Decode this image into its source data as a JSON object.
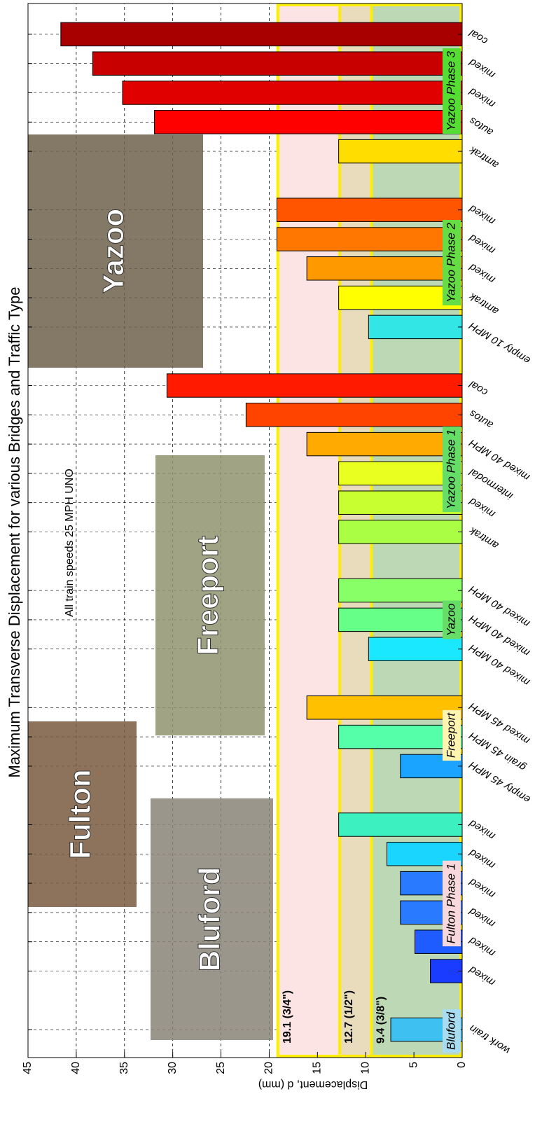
{
  "chart_data": {
    "type": "bar",
    "title": "Maximum Transverse Displacement for various Bridges and Traffic Type",
    "y_label": "Displacement, d (mm)",
    "annotation": "All train speeds 25 MPH UNO",
    "categories": [
      "work train",
      null,
      "mixed",
      "mixed",
      "mixed",
      "mixed",
      "mixed",
      "mixed",
      null,
      "empty 45 MPH",
      "grain 45 MPH",
      "mixed 45 MPH",
      null,
      "mixed 40 MPH",
      "mixed 40 MPH",
      "mixed 40 MPH",
      null,
      "amtrak",
      "mixed",
      "intermodal",
      "mixed 40 MPH",
      "autos",
      "coal",
      null,
      "empty 10 MPH",
      "amtrak",
      "mixed",
      "mixed",
      "mixed",
      null,
      "amtrak",
      "autos",
      "mixed",
      "mixed",
      "coal"
    ],
    "values": [
      7.4,
      null,
      3.3,
      4.9,
      6.4,
      6.4,
      7.8,
      12.8,
      null,
      6.4,
      12.8,
      16.1,
      null,
      9.7,
      12.8,
      12.8,
      null,
      12.8,
      12.8,
      12.8,
      16.1,
      22.4,
      30.6,
      null,
      9.7,
      12.8,
      16.1,
      19.2,
      19.2,
      null,
      12.8,
      31.9,
      35.2,
      38.3,
      41.6
    ],
    "colors": [
      "#3ec0f0",
      null,
      "#1a3cff",
      "#1f5cff",
      "#2a7aff",
      "#2a7aff",
      "#1ad6ff",
      "#3df0c0",
      null,
      "#1aa3ff",
      "#55ffaa",
      "#ffc000",
      null,
      "#1ae8ff",
      "#66ff88",
      "#88ff66",
      null,
      "#aaff44",
      "#c8ff30",
      "#e8ff20",
      "#ffaa00",
      "#ff4400",
      "#ff1a00",
      null,
      "#33e6e6",
      "#ffff00",
      "#ff9900",
      "#ff7700",
      "#ff5500",
      null,
      "#ffdd00",
      "#ff0000",
      "#e00000",
      "#c80000",
      "#a80000"
    ],
    "ylim": [
      0,
      45
    ],
    "yticks": [
      0,
      5,
      10,
      15,
      20,
      25,
      30,
      35,
      40,
      45
    ],
    "grid": true,
    "thresholds": [
      {
        "value": 19.1,
        "label": "19.1 (3/4\")",
        "color": "#fce4e4"
      },
      {
        "value": 12.7,
        "label": "12.7 (1/2\")",
        "color": "#e8dcbc"
      },
      {
        "value": 9.4,
        "label": "9.4 (3/8\")",
        "color": "#bcd8b4"
      }
    ],
    "threshold_line_color": "#ffee00",
    "groups": [
      {
        "label": "Bluford",
        "color": "#a8dcf0"
      },
      {
        "label": "Fulton Phase 1",
        "color": "#f8d8dc"
      },
      {
        "label": "Freeport",
        "color": "#fff4b0"
      },
      {
        "label": "Yazoo",
        "color": "#66dd66"
      },
      {
        "label": "Yazoo Phase 1",
        "color": "#66dd66"
      },
      {
        "label": "Yazoo Phase 2",
        "color": "#66dd44"
      },
      {
        "label": "Yazoo Phase 3",
        "color": "#55dd33"
      }
    ],
    "photos": [
      {
        "label": "Bluford"
      },
      {
        "label": "Fulton"
      },
      {
        "label": "Freeport"
      },
      {
        "label": "Yazoo"
      }
    ]
  }
}
